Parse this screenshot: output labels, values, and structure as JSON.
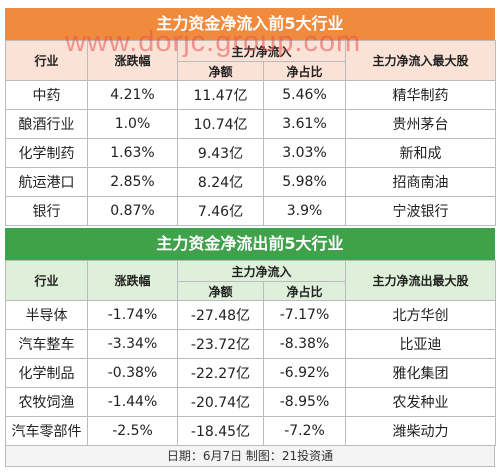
{
  "watermark": "www.dorjc.group.com",
  "inflow": {
    "title": "主力资金净流入前5大行业",
    "headers": {
      "industry": "行业",
      "change": "涨跌幅",
      "net_group": "主力净流入",
      "net_amount": "净额",
      "net_ratio": "净占比",
      "top_stock": "主力净流入最大股"
    },
    "rows": [
      {
        "industry": "中药",
        "change": "4.21%",
        "net_amount": "11.47亿",
        "net_ratio": "5.46%",
        "top_stock": "精华制药"
      },
      {
        "industry": "酿酒行业",
        "change": "1.0%",
        "net_amount": "10.74亿",
        "net_ratio": "3.61%",
        "top_stock": "贵州茅台"
      },
      {
        "industry": "化学制药",
        "change": "1.63%",
        "net_amount": "9.43亿",
        "net_ratio": "3.03%",
        "top_stock": "新和成"
      },
      {
        "industry": "航运港口",
        "change": "2.85%",
        "net_amount": "8.24亿",
        "net_ratio": "5.98%",
        "top_stock": "招商南油"
      },
      {
        "industry": "银行",
        "change": "0.87%",
        "net_amount": "7.46亿",
        "net_ratio": "3.9%",
        "top_stock": "宁波银行"
      }
    ]
  },
  "outflow": {
    "title": "主力资金净流出前5大行业",
    "headers": {
      "industry": "行业",
      "change": "涨跌幅",
      "net_group": "主力净流入",
      "net_amount": "净额",
      "net_ratio": "净占比",
      "top_stock": "主力净流出最大股"
    },
    "rows": [
      {
        "industry": "半导体",
        "change": "-1.74%",
        "net_amount": "-27.48亿",
        "net_ratio": "-7.17%",
        "top_stock": "北方华创"
      },
      {
        "industry": "汽车整车",
        "change": "-3.34%",
        "net_amount": "-23.72亿",
        "net_ratio": "-8.38%",
        "top_stock": "比亚迪"
      },
      {
        "industry": "化学制品",
        "change": "-0.38%",
        "net_amount": "-22.27亿",
        "net_ratio": "-6.92%",
        "top_stock": "雅化集团"
      },
      {
        "industry": "农牧饲渔",
        "change": "-1.44%",
        "net_amount": "-20.74亿",
        "net_ratio": "-8.95%",
        "top_stock": "农发种业"
      },
      {
        "industry": "汽车零部件",
        "change": "-2.5%",
        "net_amount": "-18.45亿",
        "net_ratio": "-7.2%",
        "top_stock": "潍柴动力"
      }
    ]
  },
  "footer": "日期：6月7日 制图：21投资通",
  "colors": {
    "inflow_banner": "#f08a3c",
    "inflow_header": "#fbe2d6",
    "outflow_banner": "#3fa14a",
    "outflow_header": "#def0d9"
  }
}
